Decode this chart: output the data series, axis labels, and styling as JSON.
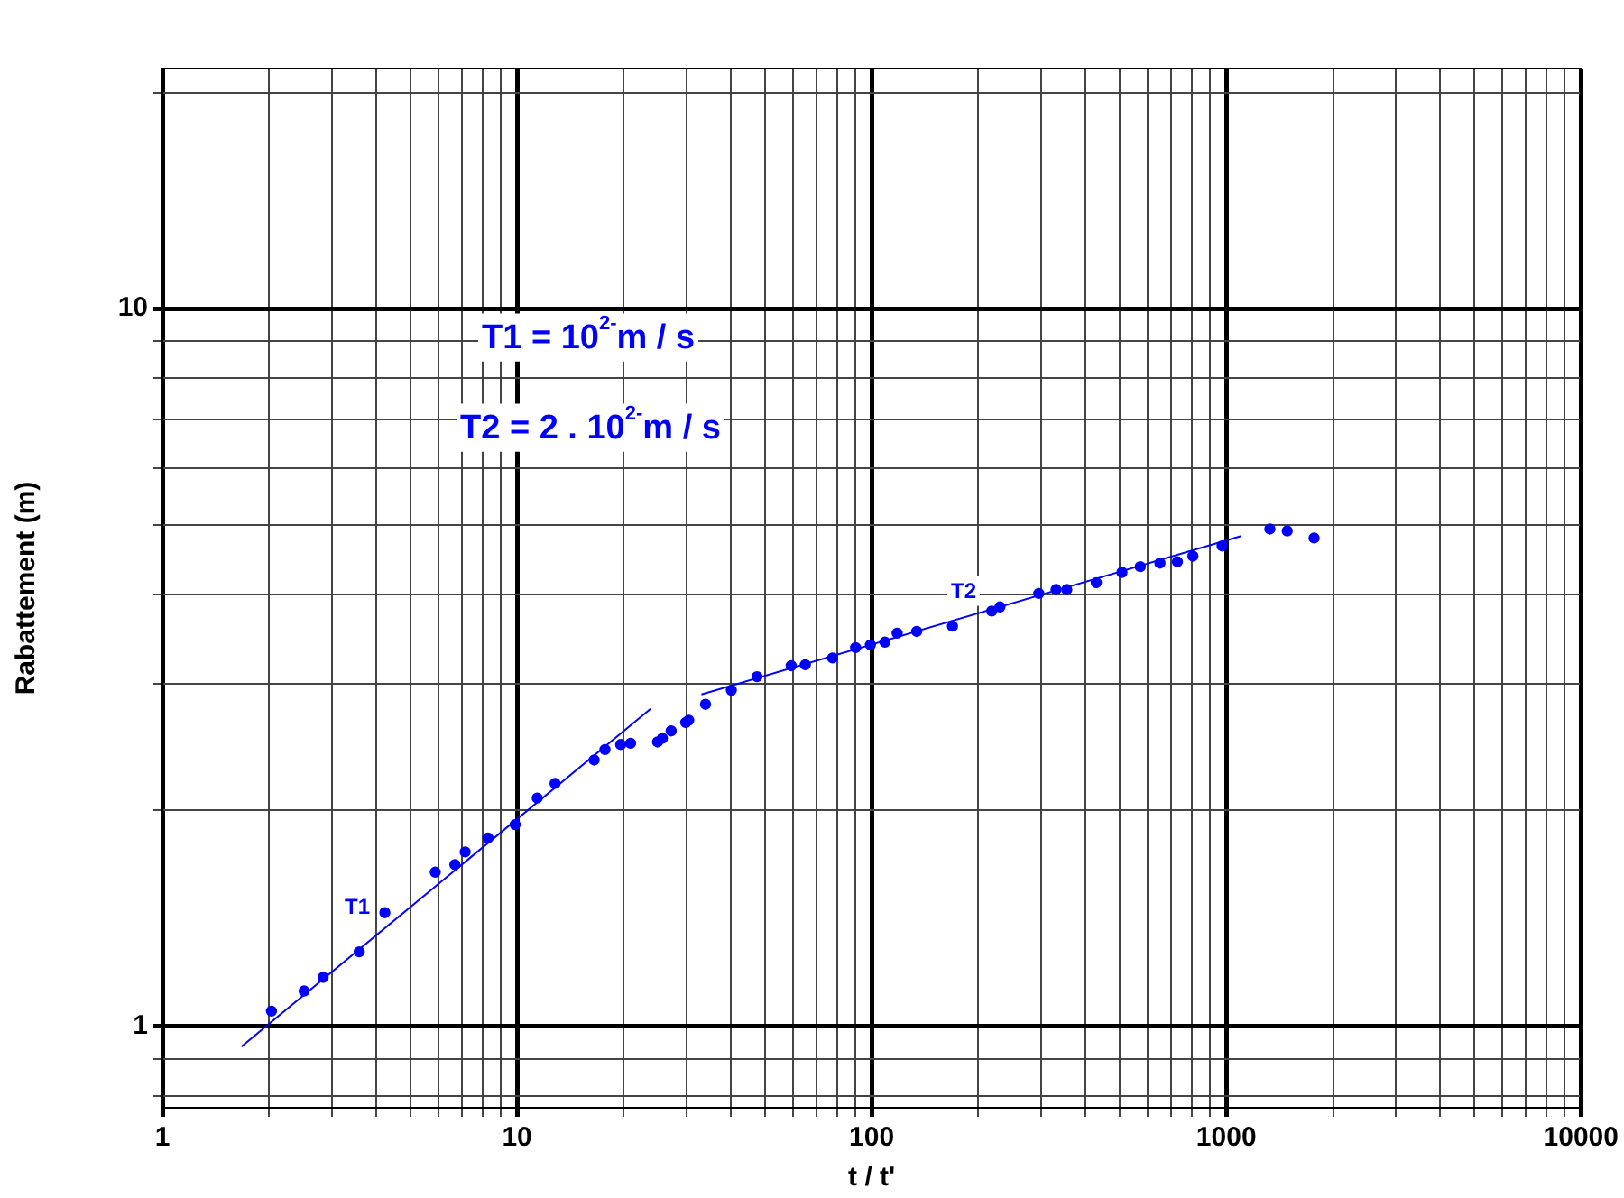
{
  "chart_data": {
    "type": "scatter",
    "xlabel": "t / t'",
    "ylabel": "Rabattement (m)",
    "log": "xy",
    "grid": true,
    "legend": false,
    "xlim": [
      1,
      10000
    ],
    "ylim": [
      0.77,
      21.6
    ],
    "xticks": [
      1,
      {
        "value": 2,
        "label": null
      },
      {
        "value": 3,
        "label": null
      },
      {
        "value": 4,
        "label": null
      },
      {
        "value": 5,
        "label": null
      },
      {
        "value": 6,
        "label": null
      },
      {
        "value": 7,
        "label": null
      },
      {
        "value": 8,
        "label": null
      },
      {
        "value": 9,
        "label": null
      },
      10,
      {
        "value": 20,
        "label": null
      },
      {
        "value": 30,
        "label": null
      },
      {
        "value": 40,
        "label": null
      },
      {
        "value": 50,
        "label": null
      },
      {
        "value": 60,
        "label": null
      },
      {
        "value": 70,
        "label": null
      },
      {
        "value": 80,
        "label": null
      },
      {
        "value": 90,
        "label": null
      },
      100,
      {
        "value": 200,
        "label": null
      },
      {
        "value": 300,
        "label": null
      },
      {
        "value": 400,
        "label": null
      },
      {
        "value": 500,
        "label": null
      },
      {
        "value": 600,
        "label": null
      },
      {
        "value": 700,
        "label": null
      },
      {
        "value": 800,
        "label": null
      },
      {
        "value": 900,
        "label": null
      },
      1000,
      {
        "value": 2000,
        "label": null
      },
      {
        "value": 3000,
        "label": null
      },
      {
        "value": 4000,
        "label": null
      },
      {
        "value": 5000,
        "label": null
      },
      {
        "value": 6000,
        "label": null
      },
      {
        "value": 7000,
        "label": null
      },
      {
        "value": 8000,
        "label": null
      },
      {
        "value": 9000,
        "label": null
      },
      10000
    ],
    "yticks": [
      {
        "value": 0.8,
        "label": null
      },
      {
        "value": 0.9,
        "label": null
      },
      1,
      {
        "value": 2,
        "label": null
      },
      {
        "value": 3,
        "label": null
      },
      {
        "value": 4,
        "label": null
      },
      {
        "value": 5,
        "label": null
      },
      {
        "value": 6,
        "label": null
      },
      {
        "value": 7,
        "label": null
      },
      {
        "value": 8,
        "label": null
      },
      {
        "value": 9,
        "label": null
      },
      10,
      {
        "value": 20,
        "label": null
      }
    ],
    "series": [
      {
        "marker": "circle",
        "color": "#0000ff",
        "x": [
          2.03,
          2.51,
          2.84,
          3.59,
          4.24,
          5.88,
          6.68,
          7.14,
          8.28,
          9.88,
          11.4,
          12.8,
          16.5,
          17.7,
          19.6,
          20.9,
          24.9,
          25.7,
          27.2,
          29.9,
          30.5,
          34.0,
          40.2,
          47.5,
          59.3,
          65.0,
          77.6,
          90.1,
          99.2,
          109,
          118,
          134,
          169,
          218,
          230,
          296,
          331,
          355,
          430,
          508,
          572,
          650,
          728,
          805,
          973,
          1327,
          1485,
          1768
        ],
        "values": [
          1.05,
          1.12,
          1.17,
          1.27,
          1.44,
          1.64,
          1.68,
          1.75,
          1.83,
          1.91,
          2.08,
          2.18,
          2.35,
          2.43,
          2.47,
          2.48,
          2.49,
          2.52,
          2.58,
          2.65,
          2.67,
          2.81,
          2.94,
          3.07,
          3.18,
          3.19,
          3.26,
          3.37,
          3.4,
          3.43,
          3.53,
          3.55,
          3.61,
          3.79,
          3.84,
          4.01,
          4.06,
          4.06,
          4.15,
          4.29,
          4.37,
          4.42,
          4.44,
          4.52,
          4.67,
          4.93,
          4.9,
          4.79
        ]
      },
      {
        "type": "line",
        "marker": "none",
        "color": "#0000ff",
        "x": [
          1.67,
          23.8
        ],
        "values": [
          0.937,
          2.77
        ]
      },
      {
        "type": "line",
        "marker": "none",
        "color": "#0000ff",
        "x": [
          33.1,
          1101
        ],
        "values": [
          2.9,
          4.82
        ]
      }
    ],
    "annotations": [
      "T1 = 10$^{2-}$m / s",
      "T2 = 2 . 10$^{2-}$m / s",
      "T1",
      "T2"
    ]
  }
}
